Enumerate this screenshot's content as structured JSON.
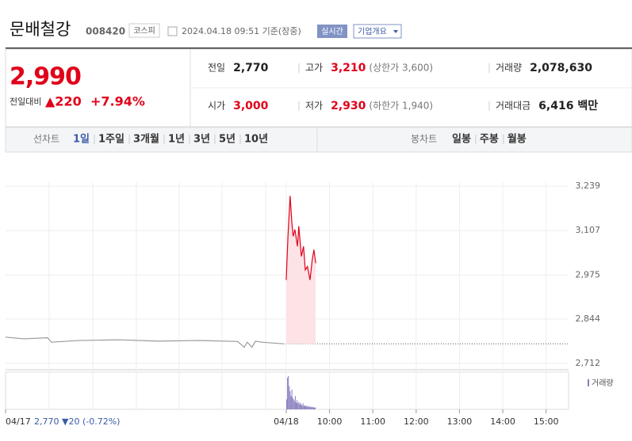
{
  "header": {
    "name": "문배철강",
    "code": "008420",
    "market": "코스피",
    "timestamp": "2024.04.18 09:51 기준(장중)",
    "realtime": "실시간",
    "company_button": "기업개요"
  },
  "quote": {
    "price": "2,990",
    "change_label": "전일대비",
    "change": "▲220",
    "change_pct": "+7.94%"
  },
  "stats": [
    {
      "label": "전일",
      "value": "2,770",
      "color": "#222"
    },
    {
      "label": "고가",
      "value": "3,210",
      "note": "(상한가 3,600)",
      "color": "#e0001a"
    },
    {
      "label": "거래량",
      "value": "2,078,630",
      "color": "#222"
    },
    {
      "label": "시가",
      "value": "3,000",
      "color": "#e0001a"
    },
    {
      "label": "저가",
      "value": "2,930",
      "note": "(하한가 1,940)",
      "color": "#e0001a"
    },
    {
      "label": "거래대금",
      "value": "6,416 백만",
      "color": "#222"
    }
  ],
  "tabs": {
    "line_chart_label": "선차트",
    "line_periods": [
      "1일",
      "1주일",
      "3개월",
      "1년",
      "3년",
      "5년",
      "10년"
    ],
    "selected": 0,
    "candle_chart_label": "봉차트",
    "candle_periods": [
      "일봉",
      "주봉",
      "월봉"
    ]
  },
  "chart_data": {
    "type": "line",
    "xlim": [
      2.52,
      15.5
    ],
    "ylim": [
      2693,
      3310
    ],
    "yticks": [
      {
        "value": 3239,
        "label": "3,239"
      },
      {
        "value": 3107,
        "label": "3,107"
      },
      {
        "value": 2975,
        "label": "2,975"
      },
      {
        "value": 2844,
        "label": "2,844"
      },
      {
        "value": 2712,
        "label": "2,712"
      }
    ],
    "xticks": [
      {
        "value": 2.52,
        "label": "04/17"
      },
      {
        "value": 9,
        "label": "04/18"
      },
      {
        "value": 10,
        "label": "10:00"
      },
      {
        "value": 11,
        "label": "11:00"
      },
      {
        "value": 12,
        "label": "12:00"
      },
      {
        "value": 13,
        "label": "13:00"
      },
      {
        "value": 14,
        "label": "14:00"
      },
      {
        "value": 15,
        "label": "15:00"
      }
    ],
    "baseline": 2770,
    "series": [
      {
        "color": "#9a9a9a",
        "x": [
          2.52,
          2.94,
          3.49,
          3.58,
          4.22,
          5.14,
          6.05,
          6.97,
          7.88,
          8.03,
          8.1,
          8.21,
          8.29,
          8.43,
          8.96
        ],
        "values": [
          2790,
          2785,
          2788,
          2775,
          2780,
          2782,
          2778,
          2780,
          2777,
          2760,
          2775,
          2760,
          2778,
          2775,
          2770
        ]
      },
      {
        "color": "#e0001a",
        "fill": "#fde3e5",
        "x": [
          9.0,
          9.04,
          9.09,
          9.13,
          9.16,
          9.2,
          9.26,
          9.29,
          9.35,
          9.4,
          9.44,
          9.49,
          9.55,
          9.6,
          9.64,
          9.68
        ],
        "values": [
          2960,
          3090,
          3210,
          3130,
          3090,
          3110,
          3060,
          3120,
          3030,
          3060,
          2990,
          3000,
          2960,
          3020,
          3050,
          3010
        ]
      }
    ],
    "volume": {
      "name": "거래량",
      "color": "#8a7fc0",
      "x": [
        9.01,
        9.03,
        9.05,
        9.07,
        9.09,
        9.11,
        9.13,
        9.15,
        9.17,
        9.19,
        9.21,
        9.23,
        9.25,
        9.27,
        9.29,
        9.31,
        9.33,
        9.35,
        9.37,
        9.39,
        9.41,
        9.43,
        9.45,
        9.47,
        9.49,
        9.51,
        9.53,
        9.55,
        9.57,
        9.59,
        9.61,
        9.63,
        9.65,
        9.67
      ],
      "values": [
        30,
        95,
        100,
        70,
        55,
        40,
        60,
        35,
        30,
        25,
        40,
        20,
        28,
        18,
        22,
        15,
        20,
        14,
        12,
        18,
        10,
        12,
        9,
        11,
        8,
        10,
        7,
        9,
        6,
        8,
        6,
        7,
        5,
        6
      ]
    },
    "footer_summary": "2,770 ▼20 (-0.72%)"
  }
}
